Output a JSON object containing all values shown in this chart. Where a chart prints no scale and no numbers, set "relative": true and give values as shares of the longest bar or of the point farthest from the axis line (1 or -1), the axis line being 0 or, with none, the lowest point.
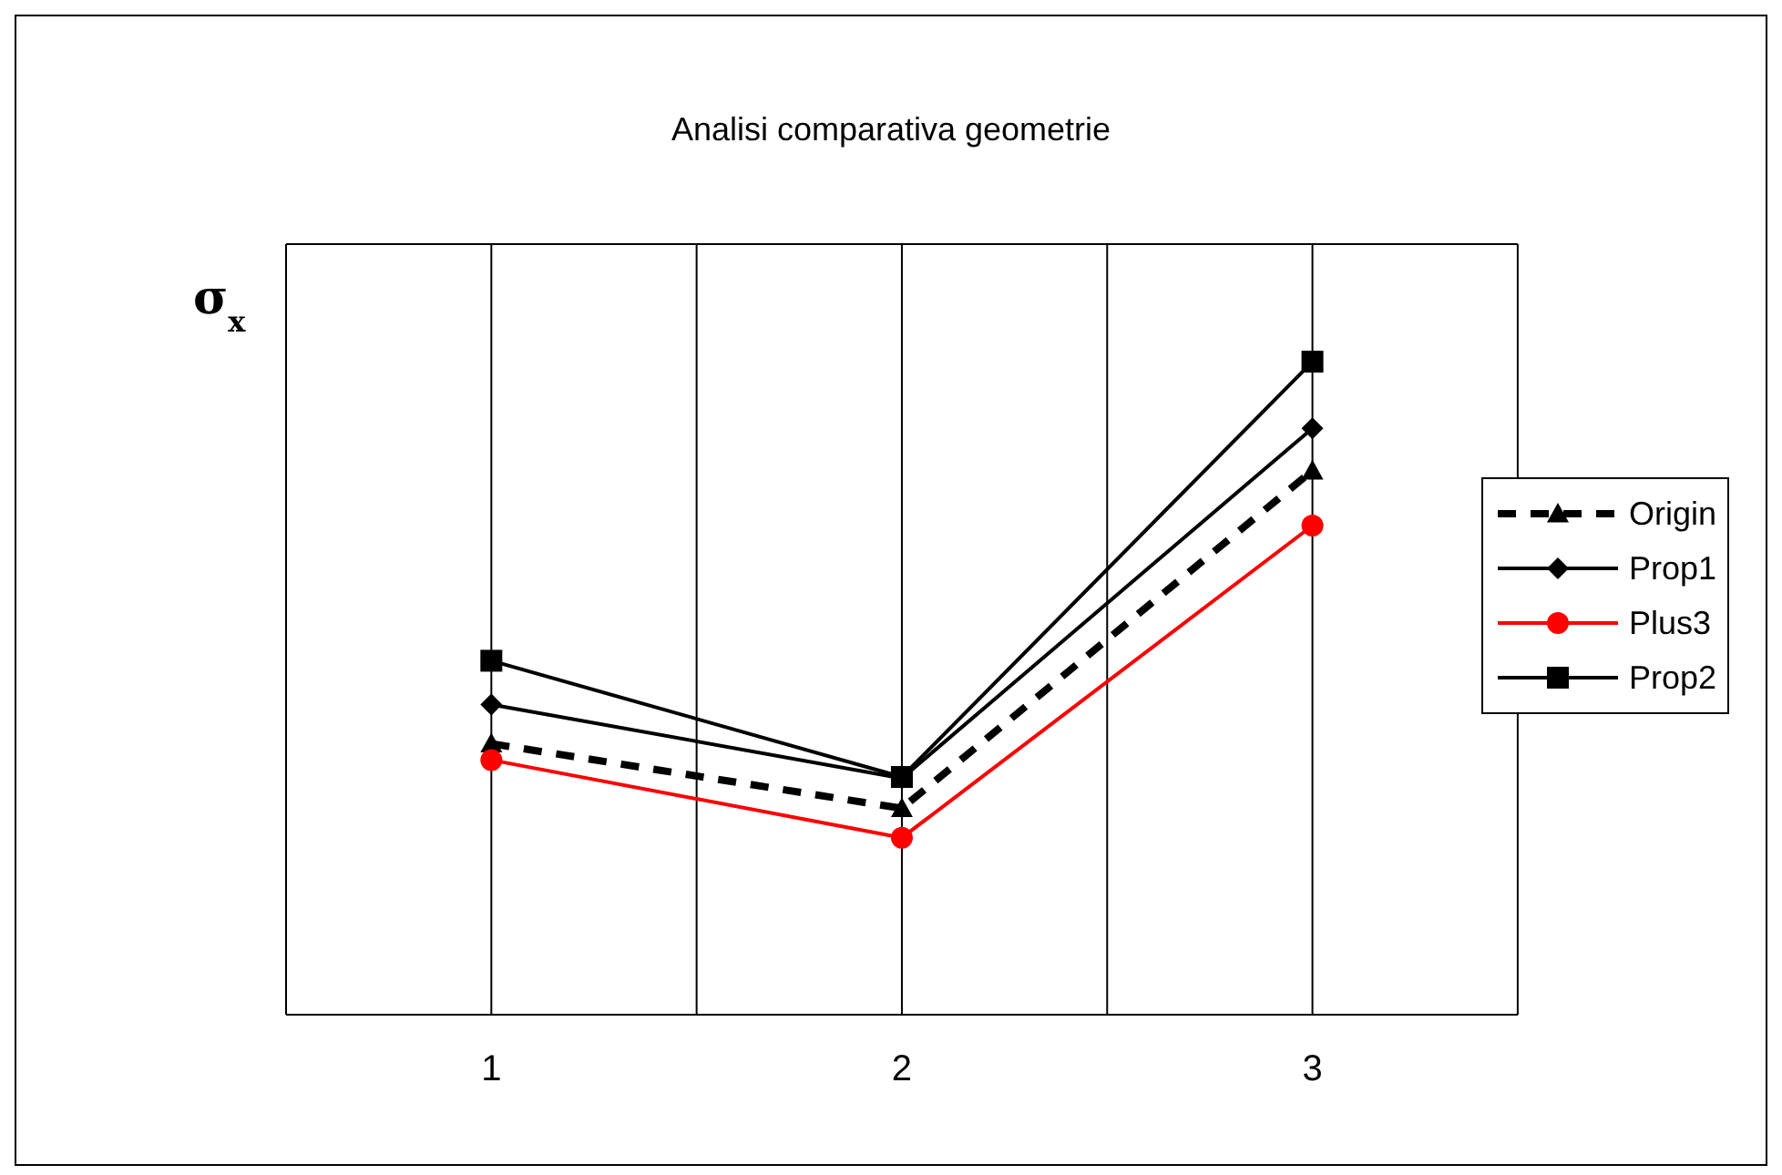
{
  "chart_data": {
    "type": "line",
    "title": "Analisi comparativa geometrie",
    "ylabel": "σ$_{x}$",
    "relative": true,
    "x": [
      1,
      2,
      3
    ],
    "xlim": [
      0.5,
      3.5
    ],
    "xticks": [
      1,
      {
        "value": 1.5,
        "label": null
      },
      2,
      {
        "value": 2.5,
        "label": null
      },
      3
    ],
    "grid": true,
    "legend": "right",
    "series": [
      {
        "name": "Origin",
        "color": "#000000",
        "marker": "triangle",
        "line_style": "dashed",
        "values": [
          0.415,
          0.316,
          0.833
        ]
      },
      {
        "name": "Prop1",
        "color": "#000000",
        "marker": "diamond",
        "line_style": "solid",
        "values": [
          0.475,
          0.362,
          0.898
        ]
      },
      {
        "name": "Plus3",
        "color": "#ff0000",
        "marker": "circle",
        "line_style": "solid",
        "values": [
          0.39,
          0.271,
          0.749
        ]
      },
      {
        "name": "Prop2",
        "color": "#000000",
        "marker": "square",
        "line_style": "solid",
        "values": [
          0.542,
          0.364,
          1
        ]
      }
    ]
  }
}
